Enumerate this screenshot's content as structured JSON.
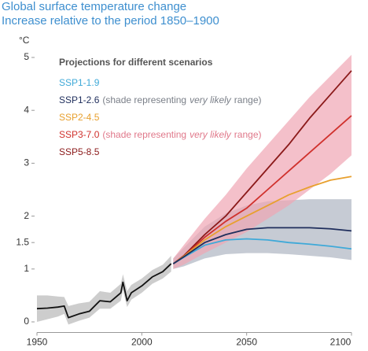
{
  "chart_data": {
    "type": "line",
    "title": "Global surface temperature change",
    "subtitle": "Increase relative to the period 1850–1900",
    "y_label": "°C",
    "legend_title": "Projections for different scenarios",
    "range_note": {
      "before": "(shade representing",
      "emphasis": "very likely",
      "after": "range)"
    },
    "xlim": [
      1950,
      2100
    ],
    "xticks": [
      1950,
      2000,
      2050,
      2100
    ],
    "ylim": [
      -0.2,
      5.2
    ],
    "yticks": [
      0,
      1,
      1.5,
      2,
      3,
      4,
      5
    ],
    "grid": false,
    "historical": {
      "color": "#111111",
      "range_color": "#b8b8b8",
      "x": [
        1950,
        1955,
        1960,
        1963,
        1965,
        1970,
        1975,
        1980,
        1985,
        1990,
        1991,
        1993,
        1995,
        2000,
        2005,
        2010,
        2014
      ],
      "values": [
        0.25,
        0.26,
        0.28,
        0.3,
        0.08,
        0.15,
        0.2,
        0.4,
        0.38,
        0.55,
        0.75,
        0.4,
        0.55,
        0.68,
        0.85,
        0.95,
        1.1
      ],
      "lower": [
        0.0,
        0.05,
        0.1,
        0.15,
        -0.05,
        0.02,
        0.08,
        0.25,
        0.25,
        0.4,
        0.6,
        0.28,
        0.42,
        0.55,
        0.72,
        0.82,
        0.95
      ],
      "upper": [
        0.5,
        0.5,
        0.48,
        0.47,
        0.3,
        0.35,
        0.38,
        0.58,
        0.55,
        0.72,
        0.9,
        0.58,
        0.7,
        0.82,
        0.98,
        1.08,
        1.25
      ]
    },
    "x": [
      2015,
      2020,
      2030,
      2040,
      2050,
      2060,
      2070,
      2080,
      2090,
      2100
    ],
    "series": [
      {
        "name": "SSP1-1.9",
        "color": "#3fa9d8",
        "values": [
          1.1,
          1.22,
          1.45,
          1.55,
          1.57,
          1.55,
          1.5,
          1.47,
          1.43,
          1.38
        ]
      },
      {
        "name": "SSP1-2.6",
        "color": "#1f2e5c",
        "values": [
          1.1,
          1.23,
          1.5,
          1.65,
          1.75,
          1.78,
          1.78,
          1.78,
          1.76,
          1.72
        ],
        "range": {
          "color": "#aeb5c2",
          "note_color": "#7a7f88",
          "lower": [
            1.0,
            1.05,
            1.2,
            1.28,
            1.3,
            1.3,
            1.28,
            1.25,
            1.22,
            1.17
          ],
          "upper": [
            1.2,
            1.4,
            1.8,
            2.05,
            2.2,
            2.28,
            2.3,
            2.32,
            2.32,
            2.32
          ]
        }
      },
      {
        "name": "SSP2-4.5",
        "color": "#e8a02e",
        "values": [
          1.1,
          1.24,
          1.55,
          1.8,
          2.0,
          2.2,
          2.4,
          2.55,
          2.68,
          2.75
        ]
      },
      {
        "name": "SSP3-7.0",
        "color": "#d0312d",
        "values": [
          1.1,
          1.24,
          1.6,
          1.9,
          2.15,
          2.5,
          2.85,
          3.2,
          3.55,
          3.9
        ],
        "range": {
          "color": "#f0a5b3",
          "note_color": "#e0788a",
          "lower": [
            1.0,
            1.08,
            1.3,
            1.5,
            1.7,
            1.95,
            2.2,
            2.5,
            2.8,
            3.15
          ],
          "upper": [
            1.2,
            1.45,
            1.95,
            2.4,
            2.9,
            3.35,
            3.8,
            4.25,
            4.65,
            5.05
          ]
        }
      },
      {
        "name": "SSP5-8.5",
        "color": "#8b1a1a",
        "values": [
          1.1,
          1.25,
          1.65,
          2.0,
          2.45,
          2.9,
          3.35,
          3.85,
          4.3,
          4.75
        ]
      }
    ]
  }
}
